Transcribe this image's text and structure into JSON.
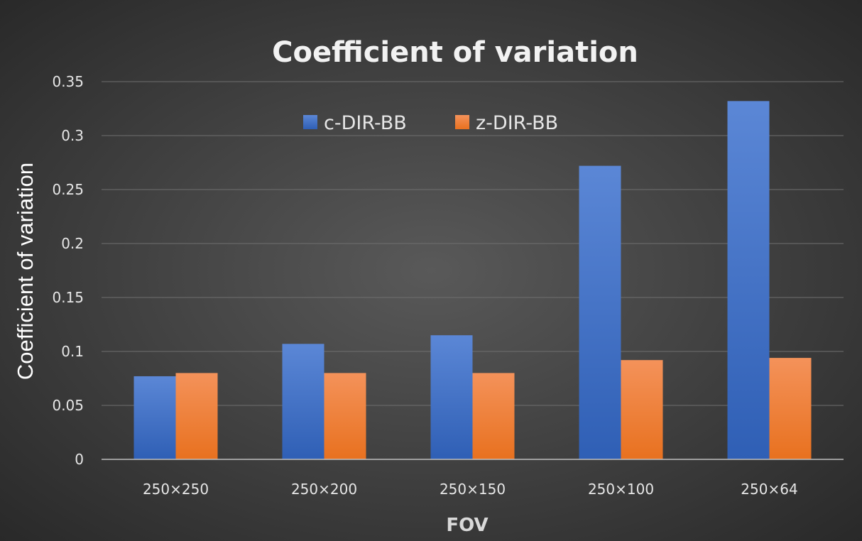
{
  "chart_data": {
    "type": "bar",
    "title": "Coefficient of variation",
    "xlabel": "FOV",
    "ylabel": "Coefficient of variation",
    "categories": [
      "250×250",
      "250×200",
      "250×150",
      "250×100",
      "250×64"
    ],
    "series": [
      {
        "name": "c-DIR-BB",
        "color": "#4472c4",
        "values": [
          0.077,
          0.107,
          0.115,
          0.272,
          0.332
        ]
      },
      {
        "name": "z-DIR-BB",
        "color": "#ed7d31",
        "values": [
          0.08,
          0.08,
          0.08,
          0.092,
          0.094
        ]
      }
    ],
    "ylim": [
      0,
      0.35
    ],
    "yticks": [
      0,
      0.05,
      0.1,
      0.15,
      0.2,
      0.25,
      0.3,
      0.35
    ],
    "ytick_labels": [
      "0",
      "0.05",
      "0.1",
      "0.15",
      "0.2",
      "0.25",
      "0.3",
      "0.35"
    ],
    "grid": true,
    "legend_position": "top-center"
  }
}
